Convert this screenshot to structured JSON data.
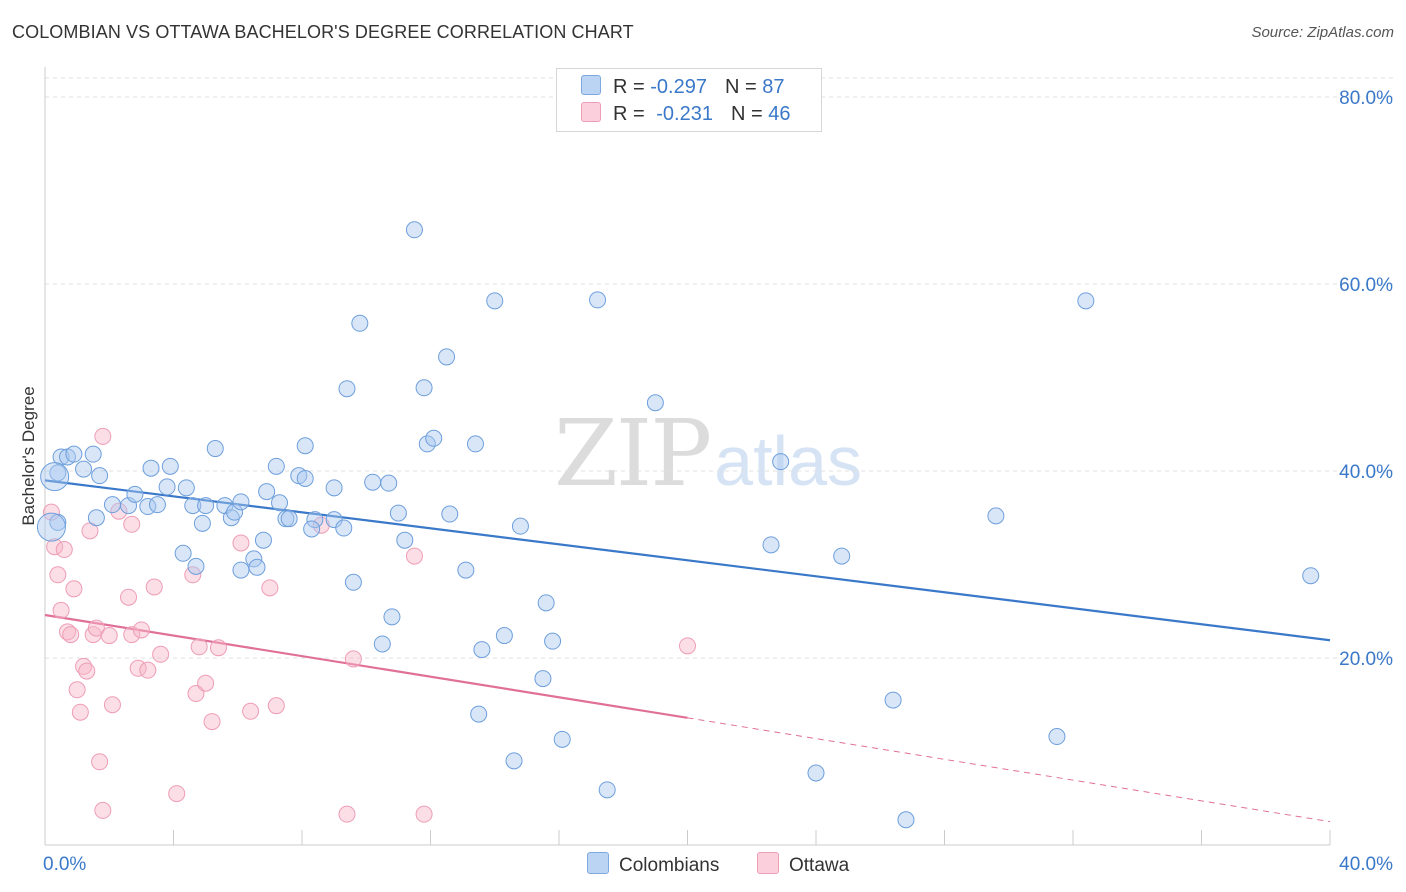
{
  "title": "COLOMBIAN VS OTTAWA BACHELOR'S DEGREE CORRELATION CHART",
  "source": "Source: ZipAtlas.com",
  "watermark": {
    "zip": "ZIP",
    "atlas": "atlas"
  },
  "legend": {
    "rows": [
      {
        "r_label": "R = ",
        "r_value": "-0.297",
        "n_label": "N = ",
        "n_value": "87",
        "color": "#a9c8ef"
      },
      {
        "r_label": "R = ",
        "r_value": "-0.231",
        "n_label": "N = ",
        "n_value": "46",
        "color": "#f6b6c8"
      }
    ]
  },
  "bottom_legend": {
    "colombians": "Colombians",
    "ottawa": "Ottawa"
  },
  "chart_data": {
    "type": "scatter",
    "title": "COLOMBIAN VS OTTAWA BACHELOR'S DEGREE CORRELATION CHART",
    "xlabel": "",
    "ylabel": "Bachelor's Degree",
    "xlim": [
      0,
      40
    ],
    "ylim": [
      0,
      80
    ],
    "x_tick_labels": [
      "0.0%",
      "40.0%"
    ],
    "y_ticks": [
      20,
      40,
      60,
      80
    ],
    "y_tick_labels": [
      "20.0%",
      "40.0%",
      "60.0%",
      "80.0%"
    ],
    "grid": true,
    "colors": {
      "colombians": "#3a78c9",
      "ottawa": "#e07098",
      "colombians_fill": "#a9c8ef",
      "ottawa_fill": "#f6b6c8"
    },
    "series": [
      {
        "name": "Colombians",
        "trend": {
          "x0": 0,
          "y0": 39.0,
          "x1": 40,
          "y1": 21.9
        },
        "points": [
          [
            0.4,
            39.8
          ],
          [
            0.4,
            34.5
          ],
          [
            0.5,
            41.5
          ],
          [
            0.7,
            41.5
          ],
          [
            0.9,
            41.8
          ],
          [
            1.2,
            40.2
          ],
          [
            1.5,
            41.8
          ],
          [
            1.7,
            39.5
          ],
          [
            1.6,
            35
          ],
          [
            2.1,
            36.4
          ],
          [
            2.6,
            36.3
          ],
          [
            2.8,
            37.5
          ],
          [
            3.2,
            36.2
          ],
          [
            3.5,
            36.4
          ],
          [
            3.3,
            40.3
          ],
          [
            3.8,
            38.3
          ],
          [
            3.9,
            40.5
          ],
          [
            4.4,
            38.2
          ],
          [
            4.6,
            36.3
          ],
          [
            4.7,
            29.8
          ],
          [
            4.3,
            31.2
          ],
          [
            4.9,
            34.4
          ],
          [
            5.0,
            36.3
          ],
          [
            5.6,
            36.3
          ],
          [
            5.3,
            42.4
          ],
          [
            5.8,
            35.0
          ],
          [
            5.9,
            35.6
          ],
          [
            6.1,
            29.4
          ],
          [
            6.1,
            36.7
          ],
          [
            6.5,
            30.6
          ],
          [
            6.6,
            29.7
          ],
          [
            6.8,
            32.6
          ],
          [
            6.9,
            37.8
          ],
          [
            7.2,
            40.5
          ],
          [
            7.3,
            36.6
          ],
          [
            7.5,
            34.9
          ],
          [
            7.6,
            34.9
          ],
          [
            7.9,
            39.5
          ],
          [
            8.1,
            42.7
          ],
          [
            8.4,
            34.8
          ],
          [
            8.1,
            39.2
          ],
          [
            8.3,
            33.8
          ],
          [
            9.0,
            34.8
          ],
          [
            9.0,
            38.2
          ],
          [
            9.3,
            33.9
          ],
          [
            9.4,
            48.8
          ],
          [
            9.6,
            28.1
          ],
          [
            10.2,
            38.8
          ],
          [
            9.8,
            55.8
          ],
          [
            10.7,
            38.7
          ],
          [
            10.8,
            24.4
          ],
          [
            10.5,
            21.5
          ],
          [
            11.0,
            35.5
          ],
          [
            11.2,
            32.6
          ],
          [
            11.5,
            65.8
          ],
          [
            11.8,
            48.9
          ],
          [
            11.9,
            42.9
          ],
          [
            12.1,
            43.5
          ],
          [
            12.6,
            35.4
          ],
          [
            12.5,
            52.2
          ],
          [
            13.1,
            29.4
          ],
          [
            13.4,
            42.9
          ],
          [
            13.5,
            14.0
          ],
          [
            13.6,
            20.9
          ],
          [
            14.0,
            58.2
          ],
          [
            14.3,
            22.4
          ],
          [
            14.6,
            9.0
          ],
          [
            14.8,
            34.1
          ],
          [
            15.5,
            17.8
          ],
          [
            15.6,
            25.9
          ],
          [
            15.8,
            21.8
          ],
          [
            16.1,
            11.3
          ],
          [
            17.2,
            58.3
          ],
          [
            17.5,
            5.9
          ],
          [
            19.0,
            47.3
          ],
          [
            22.6,
            32.1
          ],
          [
            22.9,
            41.0
          ],
          [
            24.0,
            7.7
          ],
          [
            24.8,
            30.9
          ],
          [
            26.4,
            15.5
          ],
          [
            26.8,
            2.7
          ],
          [
            29.6,
            35.2
          ],
          [
            31.5,
            11.6
          ],
          [
            32.4,
            58.2
          ],
          [
            39.4,
            28.8
          ],
          [
            0.2,
            34.0
          ],
          [
            0.3,
            39.4
          ]
        ],
        "radius": 8
      },
      {
        "name": "Ottawa",
        "trend": {
          "x0": 0,
          "y0": 24.6,
          "x1": 20,
          "y1": 13.6,
          "dash_to_x": 40,
          "dash_to_y": 2.5
        },
        "points": [
          [
            0.2,
            35.6
          ],
          [
            0.3,
            31.9
          ],
          [
            0.4,
            28.9
          ],
          [
            0.5,
            25.1
          ],
          [
            0.6,
            31.6
          ],
          [
            0.7,
            22.8
          ],
          [
            0.8,
            22.5
          ],
          [
            0.9,
            27.4
          ],
          [
            1.0,
            16.6
          ],
          [
            1.1,
            14.2
          ],
          [
            1.2,
            19.1
          ],
          [
            1.3,
            18.6
          ],
          [
            1.4,
            33.6
          ],
          [
            1.5,
            22.5
          ],
          [
            1.6,
            23.2
          ],
          [
            1.7,
            8.9
          ],
          [
            1.8,
            3.7
          ],
          [
            1.8,
            43.7
          ],
          [
            2.0,
            22.4
          ],
          [
            2.1,
            15.0
          ],
          [
            2.3,
            35.7
          ],
          [
            2.6,
            26.5
          ],
          [
            2.7,
            22.5
          ],
          [
            2.7,
            34.3
          ],
          [
            2.9,
            18.9
          ],
          [
            3.0,
            23.0
          ],
          [
            3.2,
            18.7
          ],
          [
            3.4,
            27.6
          ],
          [
            3.6,
            20.4
          ],
          [
            4.1,
            5.5
          ],
          [
            4.6,
            28.9
          ],
          [
            4.7,
            16.2
          ],
          [
            4.8,
            21.2
          ],
          [
            5.0,
            17.3
          ],
          [
            5.2,
            13.2
          ],
          [
            5.4,
            21.1
          ],
          [
            6.1,
            32.3
          ],
          [
            6.4,
            14.3
          ],
          [
            7.0,
            27.5
          ],
          [
            7.2,
            14.9
          ],
          [
            8.6,
            34.2
          ],
          [
            9.4,
            3.3
          ],
          [
            9.6,
            19.9
          ],
          [
            11.5,
            30.9
          ],
          [
            11.8,
            3.3
          ],
          [
            20.0,
            21.3
          ]
        ],
        "radius": 8
      }
    ]
  }
}
